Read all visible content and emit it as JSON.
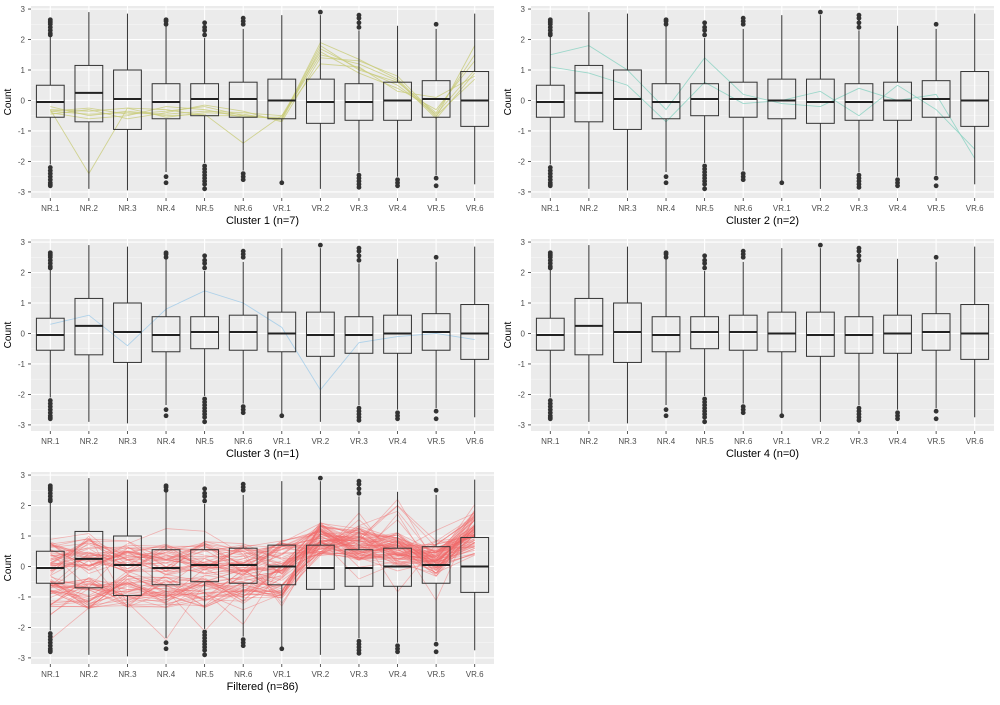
{
  "chart_data": {
    "type": "boxplot",
    "categories": [
      "NR.1",
      "NR.2",
      "NR.3",
      "NR.4",
      "NR.5",
      "NR.6",
      "VR.1",
      "VR.2",
      "VR.3",
      "VR.4",
      "VR.5",
      "VR.6"
    ],
    "ylabel": "Count",
    "ylim": [
      -3.2,
      3.1
    ],
    "yticks": [
      -3,
      -2,
      -1,
      0,
      1,
      2,
      3
    ],
    "boxes": [
      {
        "category": "NR.1",
        "q1": -0.55,
        "median": -0.05,
        "q3": 0.5,
        "whisker_low": -2.1,
        "whisker_high": 2.1,
        "outliers_low": [
          -2.2,
          -2.3,
          -2.4,
          -2.5,
          -2.6,
          -2.7,
          -2.75,
          -2.8
        ],
        "outliers_high": [
          2.15,
          2.2,
          2.3,
          2.4,
          2.5,
          2.55,
          2.6,
          2.65
        ]
      },
      {
        "category": "NR.2",
        "q1": -0.7,
        "median": 0.25,
        "q3": 1.15,
        "whisker_low": -2.9,
        "whisker_high": 2.9,
        "outliers_low": [],
        "outliers_high": []
      },
      {
        "category": "NR.3",
        "q1": -0.95,
        "median": 0.05,
        "q3": 1.0,
        "whisker_low": -2.95,
        "whisker_high": 2.85,
        "outliers_low": [],
        "outliers_high": []
      },
      {
        "category": "NR.4",
        "q1": -0.6,
        "median": -0.05,
        "q3": 0.55,
        "whisker_low": -2.35,
        "whisker_high": 2.45,
        "outliers_low": [
          -2.5,
          -2.7
        ],
        "outliers_high": [
          2.5,
          2.6,
          2.65
        ]
      },
      {
        "category": "NR.5",
        "q1": -0.5,
        "median": 0.05,
        "q3": 0.55,
        "whisker_low": -2.05,
        "whisker_high": 2.05,
        "outliers_low": [
          -2.15,
          -2.25,
          -2.35,
          -2.45,
          -2.55,
          -2.65,
          -2.75,
          -2.9
        ],
        "outliers_high": [
          2.15,
          2.3,
          2.4,
          2.55
        ]
      },
      {
        "category": "NR.6",
        "q1": -0.55,
        "median": 0.05,
        "q3": 0.6,
        "whisker_low": -2.3,
        "whisker_high": 2.35,
        "outliers_low": [
          -2.4,
          -2.5,
          -2.6
        ],
        "outliers_high": [
          2.5,
          2.6,
          2.7
        ]
      },
      {
        "category": "VR.1",
        "q1": -0.6,
        "median": 0.0,
        "q3": 0.7,
        "whisker_low": -2.65,
        "whisker_high": 2.8,
        "outliers_low": [
          -2.7
        ],
        "outliers_high": []
      },
      {
        "category": "VR.2",
        "q1": -0.75,
        "median": -0.05,
        "q3": 0.7,
        "whisker_low": -2.9,
        "whisker_high": 2.8,
        "outliers_low": [],
        "outliers_high": [
          2.9
        ]
      },
      {
        "category": "VR.3",
        "q1": -0.65,
        "median": -0.05,
        "q3": 0.55,
        "whisker_low": -2.35,
        "whisker_high": 2.3,
        "outliers_low": [
          -2.45,
          -2.55,
          -2.65,
          -2.75,
          -2.85
        ],
        "outliers_high": [
          2.4,
          2.55,
          2.7,
          2.8
        ]
      },
      {
        "category": "VR.4",
        "q1": -0.65,
        "median": 0.0,
        "q3": 0.6,
        "whisker_low": -2.5,
        "whisker_high": 2.45,
        "outliers_low": [
          -2.6,
          -2.7,
          -2.8
        ],
        "outliers_high": []
      },
      {
        "category": "VR.5",
        "q1": -0.55,
        "median": 0.05,
        "q3": 0.65,
        "whisker_low": -2.45,
        "whisker_high": 2.35,
        "outliers_low": [
          -2.55,
          -2.8
        ],
        "outliers_high": [
          2.5
        ]
      },
      {
        "category": "VR.6",
        "q1": -0.85,
        "median": 0.0,
        "q3": 0.95,
        "whisker_low": -2.75,
        "whisker_high": 2.85,
        "outliers_low": [],
        "outliers_high": []
      }
    ],
    "panels": [
      {
        "id": "cluster-1",
        "label": "Cluster 1 (n=7)",
        "color": "#c9cc7a",
        "lines": [
          [
            -0.35,
            -0.25,
            -0.45,
            -0.35,
            -0.2,
            -0.5,
            -0.6,
            1.9,
            1.35,
            0.7,
            -0.55,
            1.8
          ],
          [
            -0.3,
            -2.4,
            -0.25,
            -0.55,
            -0.4,
            -0.45,
            -0.65,
            1.7,
            1.05,
            0.5,
            -0.45,
            1.0
          ],
          [
            -0.4,
            -0.6,
            -0.5,
            -0.2,
            -0.3,
            -0.55,
            -0.55,
            1.5,
            1.2,
            0.65,
            -0.6,
            0.9
          ],
          [
            -0.2,
            -0.5,
            -0.35,
            -0.5,
            -0.45,
            -1.4,
            -0.5,
            1.6,
            0.9,
            0.4,
            -0.3,
            1.3
          ],
          [
            -0.45,
            -0.3,
            -0.6,
            -0.4,
            -0.15,
            -0.35,
            -0.7,
            1.4,
            1.3,
            0.8,
            -0.5,
            0.7
          ],
          [
            -0.3,
            -0.35,
            -0.25,
            -0.3,
            -0.5,
            -0.5,
            -0.6,
            1.8,
            1.0,
            0.6,
            -0.4,
            1.5
          ],
          [
            -0.35,
            -0.45,
            -0.4,
            -0.45,
            -0.35,
            -0.4,
            -0.5,
            1.2,
            1.1,
            0.3,
            0.1,
            0.8
          ]
        ]
      },
      {
        "id": "cluster-2",
        "label": "Cluster 2 (n=2)",
        "color": "#88d2c2",
        "lines": [
          [
            1.5,
            1.8,
            1.0,
            -0.3,
            1.4,
            0.2,
            -0.1,
            -0.2,
            0.4,
            0.0,
            0.2,
            -1.9
          ],
          [
            1.1,
            0.9,
            0.5,
            -0.7,
            0.6,
            -0.1,
            0.0,
            0.3,
            -0.5,
            0.5,
            -0.3,
            -1.6
          ]
        ]
      },
      {
        "id": "cluster-3",
        "label": "Cluster 3 (n=1)",
        "color": "#9fcbe8",
        "lines": [
          [
            0.3,
            0.6,
            -0.4,
            0.8,
            1.4,
            1.0,
            0.2,
            -1.85,
            -0.3,
            -0.1,
            0.0,
            -0.2
          ]
        ]
      },
      {
        "id": "cluster-4",
        "label": "Cluster 4 (n=0)",
        "color": "#c9a8e8",
        "lines": []
      },
      {
        "id": "filtered",
        "label": "Filtered (n=86)",
        "color": "#f26b6b",
        "lines": []
      }
    ],
    "filtered_band": {
      "count": 86,
      "low_profile": [
        -0.8,
        -0.85,
        -0.8,
        -0.8,
        -0.8,
        -0.6,
        -0.5,
        0.9,
        0.75,
        0.55,
        0.2,
        0.9
      ],
      "high_profile": [
        0.3,
        0.4,
        0.3,
        0.25,
        0.3,
        0.25,
        0.3,
        0.9,
        0.8,
        0.6,
        0.3,
        1.3
      ],
      "spread": 0.55
    }
  }
}
